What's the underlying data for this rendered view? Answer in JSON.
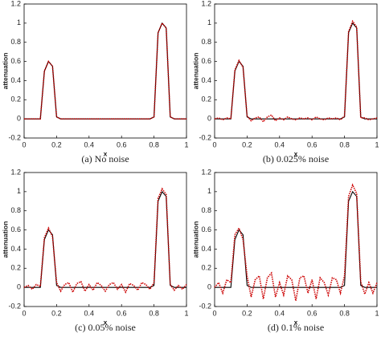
{
  "chart_data": [
    {
      "type": "line",
      "xlabel": "x",
      "ylabel": "attenuation",
      "caption": "(a) No noise",
      "xlim": [
        0,
        1
      ],
      "ylim": [
        -0.2,
        1.2
      ],
      "xticks": [
        0,
        0.2,
        0.4,
        0.6,
        0.8,
        1
      ],
      "yticks": [
        -0.2,
        0,
        0.2,
        0.4,
        0.6,
        0.8,
        1,
        1.2
      ],
      "x": [
        0,
        0.025,
        0.05,
        0.075,
        0.1,
        0.125,
        0.15,
        0.175,
        0.2,
        0.225,
        0.25,
        0.275,
        0.3,
        0.325,
        0.35,
        0.375,
        0.4,
        0.425,
        0.45,
        0.475,
        0.5,
        0.525,
        0.55,
        0.575,
        0.6,
        0.625,
        0.65,
        0.675,
        0.7,
        0.725,
        0.75,
        0.775,
        0.8,
        0.825,
        0.85,
        0.875,
        0.9,
        0.925,
        0.95,
        0.975,
        1
      ],
      "series": [
        {
          "color": "#000000",
          "values": [
            0,
            0,
            0,
            0,
            0,
            0.5,
            0.6,
            0.55,
            0.02,
            0,
            0,
            0,
            0,
            0,
            0,
            0,
            0,
            0,
            0,
            0,
            0,
            0,
            0,
            0,
            0,
            0,
            0,
            0,
            0,
            0,
            0,
            0,
            0.02,
            0.9,
            1,
            0.95,
            0.02,
            0,
            0,
            0,
            0
          ]
        },
        {
          "color": "#cc0000",
          "values": [
            0,
            0,
            0,
            0,
            0,
            0.5,
            0.6,
            0.55,
            0.02,
            0,
            0,
            0,
            0,
            0,
            0,
            0,
            0,
            0,
            0,
            0,
            0,
            0,
            0,
            0,
            0,
            0,
            0,
            0,
            0,
            0,
            0,
            0,
            0.02,
            0.9,
            1,
            0.95,
            0.02,
            0,
            0,
            0,
            0
          ]
        }
      ]
    },
    {
      "type": "line",
      "xlabel": "x",
      "ylabel": "attenuation",
      "caption": "(b) 0.025% noise",
      "xlim": [
        0,
        1
      ],
      "ylim": [
        -0.2,
        1.2
      ],
      "xticks": [
        0,
        0.2,
        0.4,
        0.6,
        0.8,
        1
      ],
      "yticks": [
        -0.2,
        0,
        0.2,
        0.4,
        0.6,
        0.8,
        1,
        1.2
      ],
      "x": [
        0,
        0.025,
        0.05,
        0.075,
        0.1,
        0.125,
        0.15,
        0.175,
        0.2,
        0.225,
        0.25,
        0.275,
        0.3,
        0.325,
        0.35,
        0.375,
        0.4,
        0.425,
        0.45,
        0.475,
        0.5,
        0.525,
        0.55,
        0.575,
        0.6,
        0.625,
        0.65,
        0.675,
        0.7,
        0.725,
        0.75,
        0.775,
        0.8,
        0.825,
        0.85,
        0.875,
        0.9,
        0.925,
        0.95,
        0.975,
        1
      ],
      "series": [
        {
          "color": "#000000",
          "values": [
            0,
            0,
            0,
            0,
            0,
            0.5,
            0.6,
            0.55,
            0.02,
            0,
            0,
            0,
            0,
            0,
            0,
            0,
            0,
            0,
            0,
            0,
            0,
            0,
            0,
            0,
            0,
            0,
            0,
            0,
            0,
            0,
            0,
            0,
            0.02,
            0.9,
            1,
            0.95,
            0.02,
            0,
            0,
            0,
            0
          ]
        },
        {
          "color": "#cc0000",
          "values": [
            0,
            0.01,
            -0.01,
            0.01,
            0,
            0.51,
            0.61,
            0.54,
            0.03,
            -0.02,
            0.01,
            0.02,
            -0.03,
            0.02,
            0.04,
            -0.02,
            0.01,
            -0.01,
            0.02,
            0,
            -0.01,
            0.01,
            0,
            0.01,
            -0.01,
            0.02,
            0,
            -0.01,
            0.01,
            0,
            0.01,
            -0.01,
            0.03,
            0.91,
            1.02,
            0.96,
            0.01,
            0.01,
            -0.01,
            0,
            0.01
          ]
        }
      ]
    },
    {
      "type": "line",
      "xlabel": "x",
      "ylabel": "attenuation",
      "caption": "(c) 0.05% noise",
      "xlim": [
        0,
        1
      ],
      "ylim": [
        -0.2,
        1.2
      ],
      "xticks": [
        0,
        0.2,
        0.4,
        0.6,
        0.8,
        1
      ],
      "yticks": [
        -0.2,
        0,
        0.2,
        0.4,
        0.6,
        0.8,
        1,
        1.2
      ],
      "x": [
        0,
        0.025,
        0.05,
        0.075,
        0.1,
        0.125,
        0.15,
        0.175,
        0.2,
        0.225,
        0.25,
        0.275,
        0.3,
        0.325,
        0.35,
        0.375,
        0.4,
        0.425,
        0.45,
        0.475,
        0.5,
        0.525,
        0.55,
        0.575,
        0.6,
        0.625,
        0.65,
        0.675,
        0.7,
        0.725,
        0.75,
        0.775,
        0.8,
        0.825,
        0.85,
        0.875,
        0.9,
        0.925,
        0.95,
        0.975,
        1
      ],
      "series": [
        {
          "color": "#000000",
          "values": [
            0,
            0,
            0,
            0,
            0,
            0.5,
            0.6,
            0.55,
            0.02,
            0,
            0,
            0,
            0,
            0,
            0,
            0,
            0,
            0,
            0,
            0,
            0,
            0,
            0,
            0,
            0,
            0,
            0,
            0,
            0,
            0,
            0,
            0,
            0.02,
            0.9,
            1,
            0.95,
            0.02,
            0,
            0,
            0,
            0
          ]
        },
        {
          "color": "#cc0000",
          "values": [
            0,
            0.02,
            -0.02,
            0.03,
            0.01,
            0.52,
            0.62,
            0.53,
            0.05,
            -0.04,
            0.03,
            0.05,
            -0.05,
            0.04,
            0.06,
            -0.04,
            0.03,
            -0.03,
            0.05,
            0.02,
            -0.04,
            0.03,
            0.05,
            -0.02,
            0.03,
            -0.05,
            0.04,
            0.02,
            -0.03,
            0.05,
            0.03,
            -0.02,
            0.05,
            0.93,
            1.03,
            0.97,
            0.03,
            -0.03,
            0.02,
            -0.02,
            0.03
          ]
        }
      ]
    },
    {
      "type": "line",
      "xlabel": "x",
      "ylabel": "attenuation",
      "caption": "(d) 0.1% noise",
      "xlim": [
        0,
        1
      ],
      "ylim": [
        -0.2,
        1.2
      ],
      "xticks": [
        0,
        0.2,
        0.4,
        0.6,
        0.8,
        1
      ],
      "yticks": [
        -0.2,
        0,
        0.2,
        0.4,
        0.6,
        0.8,
        1,
        1.2
      ],
      "x": [
        0,
        0.025,
        0.05,
        0.075,
        0.1,
        0.125,
        0.15,
        0.175,
        0.2,
        0.225,
        0.25,
        0.275,
        0.3,
        0.325,
        0.35,
        0.375,
        0.4,
        0.425,
        0.45,
        0.475,
        0.5,
        0.525,
        0.55,
        0.575,
        0.6,
        0.625,
        0.65,
        0.675,
        0.7,
        0.725,
        0.75,
        0.775,
        0.8,
        0.825,
        0.85,
        0.875,
        0.9,
        0.925,
        0.95,
        0.975,
        1
      ],
      "series": [
        {
          "color": "#000000",
          "values": [
            0,
            0,
            0,
            0,
            0,
            0.5,
            0.6,
            0.55,
            0.02,
            0,
            0,
            0,
            0,
            0,
            0,
            0,
            0,
            0,
            0,
            0,
            0,
            0,
            0,
            0,
            0,
            0,
            0,
            0,
            0,
            0,
            0,
            0,
            0.02,
            0.9,
            1,
            0.95,
            0.02,
            0,
            0,
            0,
            0
          ]
        },
        {
          "color": "#cc0000",
          "values": [
            0,
            0.05,
            -0.06,
            0.08,
            0.05,
            0.55,
            0.62,
            0.5,
            0.12,
            -0.1,
            0.08,
            0.12,
            -0.12,
            0.1,
            0.15,
            -0.1,
            0.05,
            -0.08,
            0.12,
            0.08,
            -0.14,
            0.1,
            0.12,
            -0.06,
            0.08,
            -0.12,
            0.1,
            0.05,
            -0.08,
            0.1,
            0.08,
            -0.06,
            0.12,
            0.95,
            1.07,
            0.98,
            0.06,
            -0.07,
            0.05,
            -0.06,
            0.05
          ]
        }
      ]
    }
  ]
}
